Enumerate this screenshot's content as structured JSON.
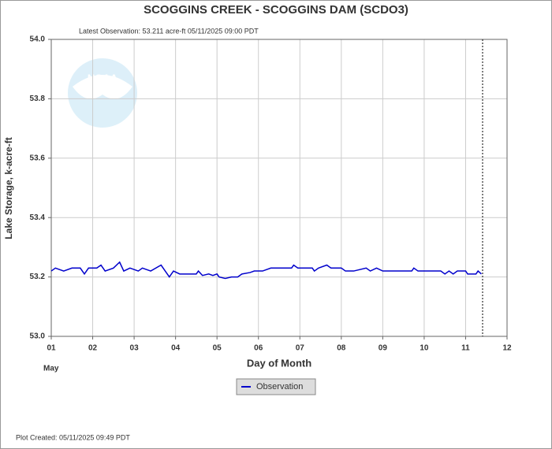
{
  "chart_data": {
    "type": "line",
    "title": "SCOGGINS CREEK - SCOGGINS DAM  (SCDO3)",
    "subtitle": "Latest Observation: 53.211 acre-ft 05/11/2025 09:00 PDT",
    "y_label": "Lake Storage, k-acre-ft",
    "x_label": "Day of Month",
    "x_sublabel": "May",
    "footer": "Plot Created: 05/11/2025 09:49 PDT",
    "logo": "NOAA",
    "xlim": [
      1,
      12
    ],
    "xticks": [
      {
        "value": 1,
        "label": "01"
      },
      {
        "value": 2,
        "label": "02"
      },
      {
        "value": 3,
        "label": "03"
      },
      {
        "value": 4,
        "label": "04"
      },
      {
        "value": 5,
        "label": "05"
      },
      {
        "value": 6,
        "label": "06"
      },
      {
        "value": 7,
        "label": "07"
      },
      {
        "value": 8,
        "label": "08"
      },
      {
        "value": 9,
        "label": "09"
      },
      10,
      11,
      12
    ],
    "ylim": [
      53.0,
      54.0
    ],
    "yticks": [
      {
        "value": 53.0,
        "label": "53.0"
      },
      53.2,
      53.4,
      53.6,
      53.8,
      {
        "value": 54.0,
        "label": "54.0"
      }
    ],
    "grid": true,
    "current_time": 11.41,
    "x": [
      1.0,
      1.1,
      1.3,
      1.5,
      1.7,
      1.8,
      1.9,
      2.1,
      2.2,
      2.3,
      2.5,
      2.65,
      2.75,
      2.9,
      3.1,
      3.2,
      3.4,
      3.65,
      3.75,
      3.85,
      3.95,
      4.1,
      4.5,
      4.55,
      4.65,
      4.8,
      4.9,
      5.0,
      5.05,
      5.2,
      5.35,
      5.5,
      5.6,
      5.8,
      5.9,
      6.1,
      6.3,
      6.8,
      6.85,
      6.95,
      7.3,
      7.35,
      7.45,
      7.65,
      7.75,
      8.0,
      8.1,
      8.3,
      8.6,
      8.7,
      8.85,
      9.0,
      9.7,
      9.75,
      9.85,
      10.4,
      10.5,
      10.6,
      10.7,
      10.8,
      11.0,
      11.05,
      11.25,
      11.3,
      11.38
    ],
    "series": [
      {
        "name": "Observation",
        "color": "#0000cc",
        "values": [
          53.22,
          53.23,
          53.22,
          53.23,
          53.23,
          53.21,
          53.23,
          53.23,
          53.24,
          53.22,
          53.23,
          53.25,
          53.22,
          53.23,
          53.22,
          53.23,
          53.22,
          53.24,
          53.22,
          53.2,
          53.22,
          53.21,
          53.21,
          53.22,
          53.205,
          53.21,
          53.205,
          53.21,
          53.2,
          53.195,
          53.2,
          53.2,
          53.21,
          53.215,
          53.22,
          53.22,
          53.23,
          53.23,
          53.24,
          53.23,
          53.23,
          53.22,
          53.23,
          53.24,
          53.23,
          53.23,
          53.22,
          53.22,
          53.23,
          53.22,
          53.23,
          53.22,
          53.22,
          53.23,
          53.22,
          53.22,
          53.21,
          53.22,
          53.21,
          53.22,
          53.22,
          53.21,
          53.21,
          53.22,
          53.21
        ]
      }
    ]
  }
}
